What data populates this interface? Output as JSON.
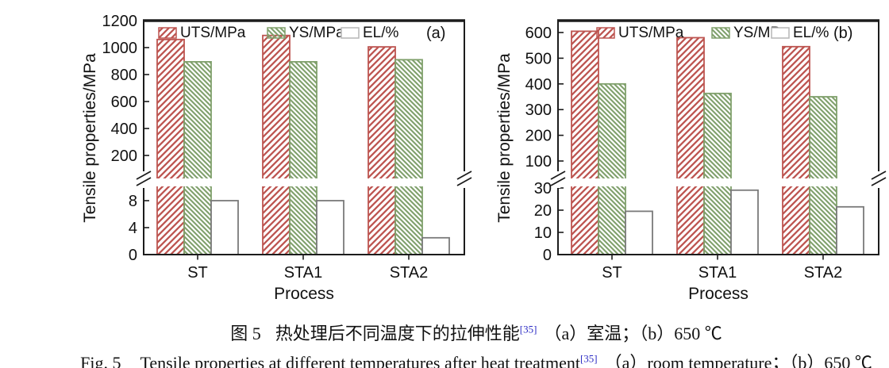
{
  "colors": {
    "uts": "#bd5551",
    "ys": "#80a06c",
    "el_fill": "#ffffff",
    "el_border": "#7a7a7a",
    "el_legend_border": "#b5b5b5",
    "axis": "#1c1c1c",
    "reference": "#2c2cc4"
  },
  "caption_zh": {
    "label": "图 5",
    "text": "热处理后不同温度下的拉伸性能",
    "ref": "[35]",
    "rest": "（a）室温；（b）650 ℃"
  },
  "caption_en": {
    "label": "Fig. 5",
    "text": "Tensile properties at different temperatures after heat treatment",
    "ref": "[35]",
    "rest": "（a）room temperature；（b）650 ℃"
  },
  "chart_data": [
    {
      "type": "bar",
      "panel": "(a)",
      "title": "",
      "ylabel": "Tensile properties/MPa",
      "xlabel": "Process",
      "categories": [
        "ST",
        "STA1",
        "STA2"
      ],
      "series": [
        {
          "name": "UTS/MPa",
          "axis": "upper",
          "values": [
            1060,
            1090,
            1005
          ]
        },
        {
          "name": "YS/MPa",
          "axis": "upper",
          "values": [
            895,
            895,
            910
          ]
        },
        {
          "name": "EL/%",
          "axis": "lower",
          "values": [
            8,
            8,
            2.5
          ]
        }
      ],
      "upper_axis": {
        "ticks": [
          200,
          400,
          600,
          800,
          1000,
          1200
        ],
        "range": [
          200,
          1200
        ]
      },
      "lower_axis": {
        "ticks": [
          0,
          4,
          8
        ],
        "range": [
          0,
          8
        ]
      },
      "axis_break": true,
      "grid": false,
      "legend_position": "top-inside"
    },
    {
      "type": "bar",
      "panel": "(b)",
      "title": "",
      "ylabel": "Tensile properties/MPa",
      "xlabel": "Process",
      "categories": [
        "ST",
        "STA1",
        "STA2"
      ],
      "series": [
        {
          "name": "UTS/MPa",
          "axis": "upper",
          "values": [
            605,
            580,
            545
          ]
        },
        {
          "name": "YS/MPa",
          "axis": "upper",
          "values": [
            400,
            363,
            350
          ]
        },
        {
          "name": "EL/%",
          "axis": "lower",
          "values": [
            19.5,
            29,
            21.5
          ]
        }
      ],
      "upper_axis": {
        "ticks": [
          100,
          200,
          300,
          400,
          500,
          600
        ],
        "range": [
          100,
          600
        ]
      },
      "lower_axis": {
        "ticks": [
          0,
          10,
          20,
          30
        ],
        "range": [
          0,
          30
        ]
      },
      "axis_break": true,
      "grid": false,
      "legend_position": "top-inside"
    }
  ]
}
